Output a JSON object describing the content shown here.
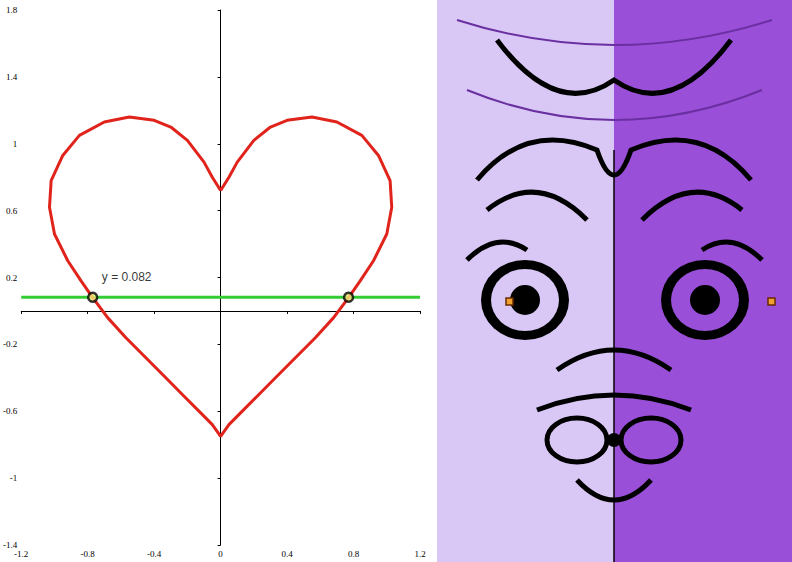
{
  "chart_data": {
    "type": "line",
    "x": [
      0,
      0.05,
      0.1,
      0.2,
      0.3,
      0.4,
      0.55,
      0.7,
      0.85,
      0.95,
      1.02,
      1.03,
      1.0,
      0.92,
      0.84,
      0.77,
      0.68,
      0.57,
      0.45,
      0.33,
      0.22,
      0.12,
      0.05,
      0,
      -0.05,
      -0.12,
      -0.22,
      -0.33,
      -0.45,
      -0.57,
      -0.68,
      -0.77,
      -0.84,
      -0.92,
      -1.0,
      -1.03,
      -1.02,
      -0.95,
      -0.85,
      -0.7,
      -0.55,
      -0.4,
      -0.3,
      -0.2,
      -0.1,
      -0.05,
      0
    ],
    "values": [
      0.72,
      0.8,
      0.89,
      1.02,
      1.1,
      1.14,
      1.16,
      1.13,
      1.05,
      0.93,
      0.78,
      0.62,
      0.46,
      0.3,
      0.18,
      0.08,
      -0.04,
      -0.16,
      -0.28,
      -0.4,
      -0.51,
      -0.61,
      -0.68,
      -0.75,
      -0.68,
      -0.61,
      -0.51,
      -0.4,
      -0.28,
      -0.16,
      -0.04,
      0.08,
      0.18,
      0.3,
      0.46,
      0.62,
      0.78,
      0.93,
      1.05,
      1.13,
      1.16,
      1.14,
      1.1,
      1.02,
      0.89,
      0.8,
      0.72
    ],
    "color": "#e0231b",
    "hline": {
      "y": 0.082,
      "color": "#33cc33",
      "label": "y = 0.082"
    },
    "points": {
      "x": [
        -0.77,
        0.77
      ],
      "y": [
        0.082,
        0.082
      ],
      "color": "#f5f07a",
      "marker": "circle"
    },
    "xlim": [
      -1.2,
      1.2
    ],
    "xticks": [
      -1.2,
      -0.8,
      -0.4,
      0,
      0.4,
      0.8,
      1.2
    ],
    "ylim": [
      -1.4,
      1.8
    ],
    "yticks": [
      -1.4,
      -1,
      -0.6,
      -0.2,
      0.2,
      0.6,
      1,
      1.4,
      1.8
    ],
    "grid": false
  }
}
